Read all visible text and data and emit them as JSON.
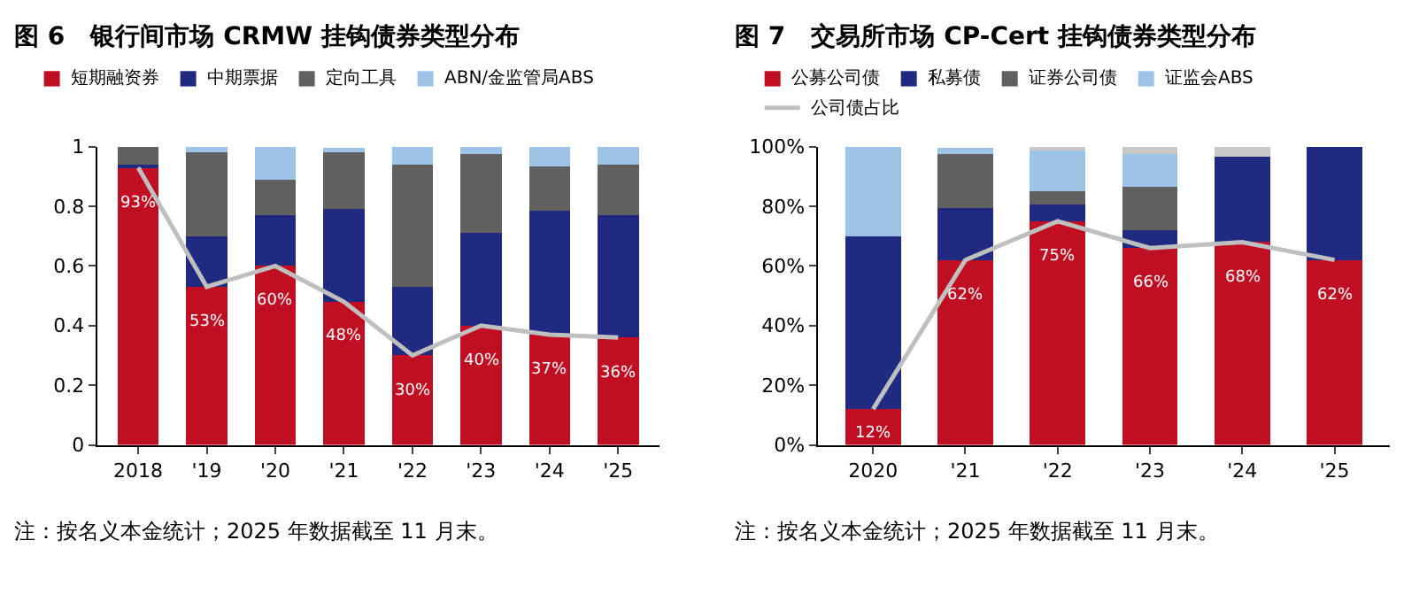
{
  "chart_data": [
    {
      "type": "bar",
      "stacked": true,
      "title": "图 6   银行间市场 CRMW 挂钩债券类型分布",
      "categories": [
        "2018",
        "'19",
        "'20",
        "'21",
        "'22",
        "'23",
        "'24",
        "'25"
      ],
      "series": [
        {
          "name": "短期融资券",
          "color": "#c00f22",
          "values": [
            0.93,
            0.53,
            0.6,
            0.48,
            0.3,
            0.4,
            0.37,
            0.36
          ]
        },
        {
          "name": "中期票据",
          "color": "#1f2a80",
          "values": [
            0.01,
            0.17,
            0.17,
            0.31,
            0.23,
            0.31,
            0.415,
            0.41
          ]
        },
        {
          "name": "定向工具",
          "color": "#606060",
          "values": [
            0.06,
            0.28,
            0.12,
            0.195,
            0.41,
            0.265,
            0.15,
            0.17
          ]
        },
        {
          "name": "ABN/金监管局ABS",
          "color": "#9dc3e6",
          "values": [
            0,
            0.02,
            0.11,
            0.01,
            0.06,
            0.025,
            0.065,
            0.06
          ]
        },
        {
          "type": "line",
          "color": "#bfbfbf",
          "values": [
            0.93,
            0.53,
            0.6,
            0.48,
            0.3,
            0.4,
            0.37,
            0.36
          ],
          "value_labels": [
            "93%",
            "53%",
            "60%",
            "48%",
            "30%",
            "40%",
            "37%",
            "36%"
          ]
        }
      ],
      "ylim": [
        0,
        1
      ],
      "yticks": [
        0,
        0.2,
        0.4,
        0.6,
        0.8,
        1
      ],
      "legend": "top",
      "annotations": [
        "注：按名义本金统计；2025 年数据截至 11 月末。"
      ]
    },
    {
      "type": "bar",
      "stacked": true,
      "title": "图 7   交易所市场 CP-Cert 挂钩债券类型分布",
      "categories": [
        "2020",
        "'21",
        "'22",
        "'23",
        "'24",
        "'25"
      ],
      "series": [
        {
          "name": "公募公司债",
          "color": "#c00f22",
          "values": [
            12,
            62,
            75,
            66,
            68,
            62
          ]
        },
        {
          "name": "私募债",
          "color": "#1f2a80",
          "values": [
            58,
            17.5,
            5.5,
            6,
            28.5,
            38
          ]
        },
        {
          "name": "证券公司债",
          "color": "#606060",
          "values": [
            0,
            18,
            4.5,
            14.5,
            0,
            0
          ]
        },
        {
          "name": "证监会ABS",
          "color": "#9dc3e6",
          "values": [
            30,
            2,
            14,
            11,
            0,
            0
          ]
        },
        {
          "color": "#c8c8c8",
          "values": [
            0,
            null,
            1,
            2.5,
            3.5,
            0
          ]
        },
        {
          "name": "公司债占比",
          "type": "line",
          "color": "#bfbfbf",
          "values": [
            12,
            62,
            75,
            66,
            68,
            62
          ],
          "value_labels": [
            "12%",
            "62%",
            "75%",
            "66%",
            "68%",
            "62%"
          ]
        }
      ],
      "ylim": [
        0,
        100
      ],
      "yticks": [
        {
          "value": 0,
          "label": "0%"
        },
        {
          "value": 20,
          "label": "20%"
        },
        {
          "value": 40,
          "label": "40%"
        },
        {
          "value": 60,
          "label": "60%"
        },
        {
          "value": 80,
          "label": "80%"
        },
        {
          "value": 100,
          "label": "100%"
        }
      ],
      "legend": "top",
      "annotations": [
        "注：按名义本金统计；2025 年数据截至 11 月末。"
      ]
    }
  ]
}
